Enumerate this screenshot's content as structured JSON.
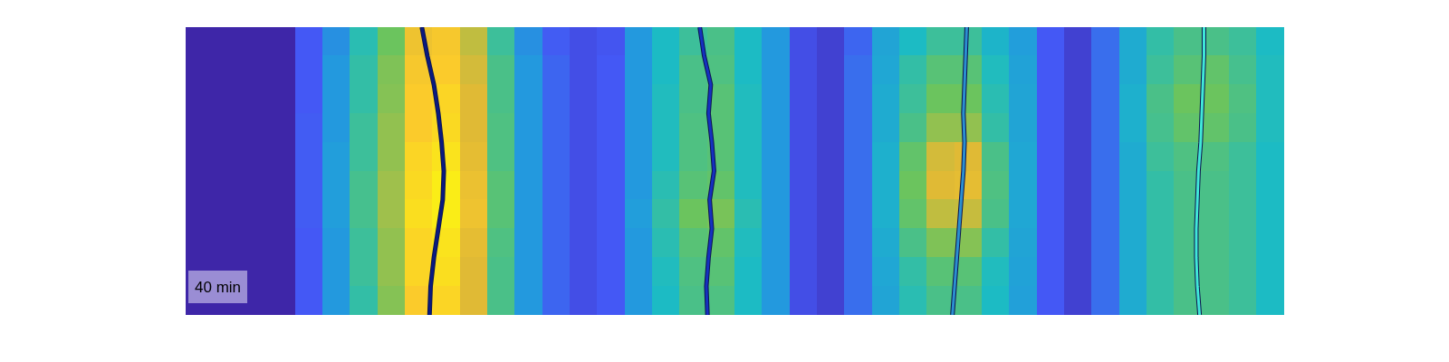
{
  "chart_data": {
    "type": "heatmap",
    "annotation": "40 min",
    "xlim": [
      0,
      100
    ],
    "ylim": [
      0,
      40
    ],
    "tick_labels": false,
    "grid": false,
    "color_range": [
      0,
      100
    ],
    "cells": [
      [
        0,
        0,
        0,
        0,
        15,
        28,
        48,
        62,
        85,
        88,
        75,
        52,
        28,
        16,
        12,
        14,
        30,
        45,
        52,
        55,
        45,
        30,
        12,
        8,
        18,
        35,
        45,
        52,
        52,
        42,
        32,
        15,
        8,
        20,
        38,
        50,
        55,
        55,
        52,
        45
      ],
      [
        0,
        0,
        0,
        0,
        15,
        30,
        50,
        65,
        88,
        90,
        78,
        55,
        30,
        18,
        12,
        15,
        30,
        45,
        55,
        56,
        45,
        30,
        12,
        8,
        20,
        36,
        50,
        58,
        58,
        46,
        34,
        15,
        8,
        20,
        38,
        52,
        58,
        60,
        54,
        46
      ],
      [
        0,
        0,
        0,
        0,
        15,
        30,
        50,
        66,
        90,
        92,
        80,
        55,
        30,
        18,
        12,
        15,
        30,
        46,
        55,
        58,
        46,
        30,
        12,
        8,
        20,
        38,
        52,
        62,
        62,
        48,
        35,
        15,
        8,
        20,
        40,
        55,
        62,
        62,
        56,
        46
      ],
      [
        0,
        0,
        0,
        0,
        16,
        30,
        52,
        68,
        90,
        93,
        80,
        56,
        30,
        18,
        12,
        15,
        30,
        46,
        56,
        58,
        46,
        30,
        12,
        8,
        20,
        38,
        55,
        68,
        68,
        50,
        35,
        15,
        8,
        20,
        40,
        54,
        60,
        60,
        55,
        46
      ],
      [
        0,
        0,
        0,
        0,
        16,
        32,
        52,
        68,
        92,
        95,
        82,
        56,
        30,
        18,
        12,
        15,
        30,
        46,
        56,
        58,
        46,
        30,
        12,
        8,
        20,
        40,
        60,
        78,
        80,
        55,
        36,
        15,
        8,
        20,
        38,
        52,
        56,
        56,
        52,
        45
      ],
      [
        0,
        0,
        0,
        0,
        16,
        32,
        54,
        70,
        93,
        97,
        84,
        58,
        30,
        18,
        12,
        15,
        30,
        48,
        58,
        60,
        46,
        30,
        12,
        8,
        20,
        40,
        62,
        80,
        82,
        56,
        36,
        15,
        8,
        20,
        38,
        50,
        55,
        55,
        52,
        45
      ],
      [
        0,
        0,
        0,
        0,
        16,
        32,
        54,
        70,
        94,
        97,
        85,
        58,
        30,
        18,
        12,
        15,
        32,
        50,
        62,
        64,
        48,
        30,
        12,
        8,
        20,
        40,
        60,
        75,
        76,
        55,
        36,
        15,
        8,
        20,
        38,
        50,
        55,
        55,
        52,
        45
      ],
      [
        0,
        0,
        0,
        0,
        15,
        30,
        52,
        68,
        92,
        95,
        82,
        56,
        30,
        18,
        12,
        15,
        30,
        48,
        58,
        60,
        46,
        30,
        12,
        8,
        20,
        38,
        55,
        65,
        66,
        50,
        35,
        15,
        8,
        20,
        38,
        50,
        55,
        55,
        52,
        45
      ],
      [
        0,
        0,
        0,
        0,
        15,
        30,
        52,
        68,
        92,
        94,
        80,
        55,
        30,
        18,
        12,
        15,
        30,
        46,
        56,
        58,
        45,
        30,
        12,
        8,
        20,
        36,
        50,
        58,
        58,
        46,
        34,
        15,
        8,
        20,
        38,
        50,
        55,
        55,
        52,
        45
      ],
      [
        0,
        0,
        0,
        0,
        15,
        30,
        50,
        66,
        90,
        92,
        80,
        55,
        30,
        18,
        12,
        15,
        30,
        45,
        55,
        56,
        45,
        30,
        12,
        8,
        20,
        35,
        48,
        55,
        55,
        45,
        33,
        15,
        8,
        20,
        38,
        50,
        55,
        55,
        52,
        45
      ]
    ],
    "series": [
      {
        "type": "line",
        "color": "#0a1a80",
        "x": [
          21.5,
          22.0,
          22.6,
          23.0,
          23.3,
          23.5,
          23.4,
          23.0,
          22.6,
          22.3,
          22.2
        ],
        "y": [
          0,
          4,
          8,
          12,
          16,
          20,
          24,
          28,
          32,
          36,
          40
        ]
      },
      {
        "type": "line",
        "color": "#1530c0",
        "x": [
          46.8,
          47.2,
          47.8,
          47.6,
          47.9,
          48.1,
          47.7,
          47.9,
          47.6,
          47.4,
          47.5
        ],
        "y": [
          0,
          4,
          8,
          12,
          16,
          20,
          24,
          28,
          32,
          36,
          40
        ]
      },
      {
        "type": "line",
        "color": "#2b8fd0",
        "x": [
          71.1,
          71.0,
          70.9,
          70.8,
          70.9,
          70.8,
          70.6,
          70.4,
          70.2,
          70.0,
          69.8
        ],
        "y": [
          0,
          4,
          8,
          12,
          16,
          20,
          24,
          28,
          32,
          36,
          40
        ]
      },
      {
        "type": "line",
        "color": "#40e8d8",
        "x": [
          92.7,
          92.7,
          92.6,
          92.5,
          92.4,
          92.2,
          92.1,
          92.0,
          92.0,
          92.1,
          92.3
        ],
        "y": [
          0,
          4,
          8,
          12,
          16,
          20,
          24,
          28,
          32,
          36,
          40
        ]
      }
    ]
  }
}
